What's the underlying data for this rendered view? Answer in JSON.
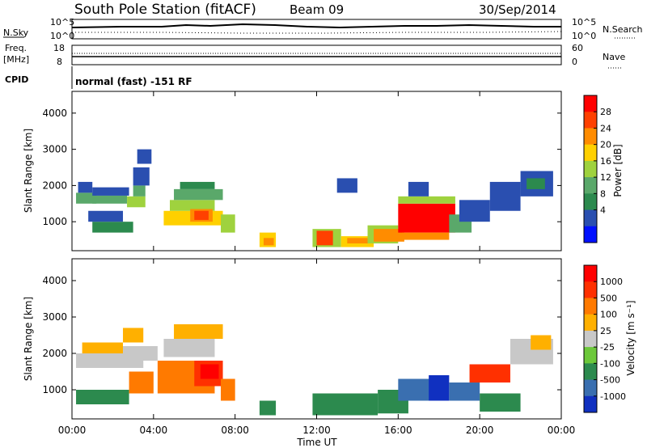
{
  "header": {
    "title": "South Pole Station (fitACF)",
    "beam": "Beam 09",
    "date": "30/Sep/2014"
  },
  "top_panels": {
    "nsky_label": "N.Sky",
    "nsearch_label": "N.Search",
    "nsky_ticks": [
      "10^5",
      "10^0"
    ],
    "nsearch_ticks": [
      "10^5",
      "10^0"
    ],
    "freq_label": "Freq.",
    "freq_unit": "[MHz]",
    "freq_ticks": [
      "18",
      "8"
    ],
    "nave_label": "Nave",
    "nave_ticks": [
      "60",
      "0"
    ],
    "cpid_label": "CPID",
    "cpid_text": "normal (fast) -151 RF"
  },
  "chart_data": [
    {
      "type": "heatmap",
      "name": "power",
      "ylabel": "Slant Range [km]",
      "yticks": [
        "1000",
        "2000",
        "3000",
        "4000"
      ],
      "ylim": [
        200,
        4600
      ],
      "xlim": [
        0,
        24
      ],
      "colorbar_label": "Power [dB]",
      "colorbar_ticks": [
        "28",
        "24",
        "20",
        "16",
        "12",
        "8",
        "4"
      ],
      "colorbar_colors": [
        "#0010ff",
        "#2a4fb0",
        "#2c8a4e",
        "#5aa86a",
        "#9fd23e",
        "#ffd000",
        "#ff8c00",
        "#ff4000",
        "#ff0000"
      ],
      "blocks": [
        {
          "t": [
            0.2,
            1.2
          ],
          "r": [
            1500,
            1800
          ],
          "c": 3
        },
        {
          "t": [
            0.3,
            1.0
          ],
          "r": [
            1800,
            2100
          ],
          "c": 1
        },
        {
          "t": [
            1.0,
            2.7
          ],
          "r": [
            1500,
            1720
          ],
          "c": 3
        },
        {
          "t": [
            1.0,
            2.8
          ],
          "r": [
            1720,
            1950
          ],
          "c": 1
        },
        {
          "t": [
            2.7,
            3.6
          ],
          "r": [
            1400,
            1700
          ],
          "c": 4
        },
        {
          "t": [
            3.0,
            3.6
          ],
          "r": [
            1700,
            2000
          ],
          "c": 3
        },
        {
          "t": [
            3.0,
            3.8
          ],
          "r": [
            2000,
            2500
          ],
          "c": 1
        },
        {
          "t": [
            3.2,
            3.9
          ],
          "r": [
            2600,
            3000
          ],
          "c": 1
        },
        {
          "t": [
            4.5,
            7.4
          ],
          "r": [
            900,
            1300
          ],
          "c": 5
        },
        {
          "t": [
            4.8,
            7.0
          ],
          "r": [
            1300,
            1600
          ],
          "c": 4
        },
        {
          "t": [
            5.0,
            7.4
          ],
          "r": [
            1600,
            1900
          ],
          "c": 3
        },
        {
          "t": [
            5.3,
            7.0
          ],
          "r": [
            1900,
            2100
          ],
          "c": 2
        },
        {
          "t": [
            5.8,
            6.9
          ],
          "r": [
            1000,
            1350
          ],
          "c": 6
        },
        {
          "t": [
            6.0,
            6.7
          ],
          "r": [
            1050,
            1300
          ],
          "c": 7
        },
        {
          "t": [
            7.3,
            8.0
          ],
          "r": [
            700,
            1200
          ],
          "c": 4
        },
        {
          "t": [
            1.0,
            3.0
          ],
          "r": [
            700,
            1000
          ],
          "c": 2
        },
        {
          "t": [
            0.8,
            2.5
          ],
          "r": [
            1000,
            1300
          ],
          "c": 1
        },
        {
          "t": [
            9.2,
            10.0
          ],
          "r": [
            300,
            700
          ],
          "c": 5
        },
        {
          "t": [
            9.4,
            9.9
          ],
          "r": [
            350,
            550
          ],
          "c": 6
        },
        {
          "t": [
            11.8,
            13.2
          ],
          "r": [
            300,
            800
          ],
          "c": 4
        },
        {
          "t": [
            12.0,
            12.8
          ],
          "r": [
            350,
            750
          ],
          "c": 7
        },
        {
          "t": [
            13.2,
            14.8
          ],
          "r": [
            300,
            600
          ],
          "c": 5
        },
        {
          "t": [
            13.5,
            14.5
          ],
          "r": [
            400,
            550
          ],
          "c": 6
        },
        {
          "t": [
            14.5,
            16.0
          ],
          "r": [
            400,
            900
          ],
          "c": 4
        },
        {
          "t": [
            14.8,
            16.3
          ],
          "r": [
            450,
            800
          ],
          "c": 6
        },
        {
          "t": [
            16.0,
            18.8
          ],
          "r": [
            700,
            1500
          ],
          "c": 8
        },
        {
          "t": [
            16.2,
            18.5
          ],
          "r": [
            500,
            700
          ],
          "c": 6
        },
        {
          "t": [
            16.0,
            18.8
          ],
          "r": [
            1500,
            1700
          ],
          "c": 4
        },
        {
          "t": [
            18.5,
            19.6
          ],
          "r": [
            700,
            1200
          ],
          "c": 3
        },
        {
          "t": [
            19.0,
            20.5
          ],
          "r": [
            1000,
            1600
          ],
          "c": 1
        },
        {
          "t": [
            20.5,
            22.0
          ],
          "r": [
            1300,
            2100
          ],
          "c": 1
        },
        {
          "t": [
            22.0,
            23.6
          ],
          "r": [
            1700,
            2400
          ],
          "c": 1
        },
        {
          "t": [
            22.3,
            23.2
          ],
          "r": [
            1900,
            2200
          ],
          "c": 2
        },
        {
          "t": [
            13.0,
            14.0
          ],
          "r": [
            1800,
            2200
          ],
          "c": 1
        },
        {
          "t": [
            16.5,
            17.5
          ],
          "r": [
            1700,
            2100
          ],
          "c": 1
        }
      ]
    },
    {
      "type": "heatmap",
      "name": "velocity",
      "ylabel": "Slant Range [km]",
      "yticks": [
        "1000",
        "2000",
        "3000",
        "4000"
      ],
      "ylim": [
        200,
        4600
      ],
      "xlim": [
        0,
        24
      ],
      "xticks": [
        "00:00",
        "04:00",
        "08:00",
        "12:00",
        "16:00",
        "20:00",
        "00:00"
      ],
      "xlabel": "Time UT",
      "colorbar_label": "Velocity [m s⁻¹]",
      "colorbar_ticks": [
        "1000",
        "500",
        "100",
        "25",
        "-25",
        "-100",
        "-500",
        "-1000"
      ],
      "colorbar_colors": [
        "#1030c0",
        "#3a6fb0",
        "#2c8a4e",
        "#6cc83a",
        "#c8c8c8",
        "#ffb000",
        "#ff7a00",
        "#ff3000",
        "#ff0000"
      ],
      "blocks": [
        {
          "t": [
            0.2,
            3.5
          ],
          "r": [
            1600,
            2000
          ],
          "c": 4
        },
        {
          "t": [
            0.2,
            2.8
          ],
          "r": [
            600,
            1000
          ],
          "c": 2
        },
        {
          "t": [
            0.5,
            2.5
          ],
          "r": [
            2000,
            2300
          ],
          "c": 5
        },
        {
          "t": [
            2.5,
            4.2
          ],
          "r": [
            1800,
            2200
          ],
          "c": 4
        },
        {
          "t": [
            2.8,
            4.0
          ],
          "r": [
            900,
            1500
          ],
          "c": 6
        },
        {
          "t": [
            2.5,
            3.5
          ],
          "r": [
            2300,
            2700
          ],
          "c": 5
        },
        {
          "t": [
            4.2,
            7.0
          ],
          "r": [
            900,
            1800
          ],
          "c": 6
        },
        {
          "t": [
            6.0,
            7.4
          ],
          "r": [
            1100,
            1800
          ],
          "c": 7
        },
        {
          "t": [
            6.3,
            7.2
          ],
          "r": [
            1300,
            1700
          ],
          "c": 8
        },
        {
          "t": [
            4.5,
            7.0
          ],
          "r": [
            1900,
            2400
          ],
          "c": 4
        },
        {
          "t": [
            5.0,
            7.4
          ],
          "r": [
            2400,
            2800
          ],
          "c": 5
        },
        {
          "t": [
            7.3,
            8.0
          ],
          "r": [
            700,
            1300
          ],
          "c": 6
        },
        {
          "t": [
            9.2,
            10.0
          ],
          "r": [
            300,
            700
          ],
          "c": 2
        },
        {
          "t": [
            11.8,
            15.0
          ],
          "r": [
            300,
            900
          ],
          "c": 2
        },
        {
          "t": [
            15.0,
            16.5
          ],
          "r": [
            350,
            1000
          ],
          "c": 2
        },
        {
          "t": [
            16.0,
            17.8
          ],
          "r": [
            700,
            1300
          ],
          "c": 1
        },
        {
          "t": [
            17.5,
            18.5
          ],
          "r": [
            700,
            1400
          ],
          "c": 0
        },
        {
          "t": [
            18.5,
            20.0
          ],
          "r": [
            700,
            1200
          ],
          "c": 1
        },
        {
          "t": [
            19.5,
            21.5
          ],
          "r": [
            1200,
            1700
          ],
          "c": 7
        },
        {
          "t": [
            21.5,
            23.6
          ],
          "r": [
            1700,
            2400
          ],
          "c": 4
        },
        {
          "t": [
            22.5,
            23.5
          ],
          "r": [
            2100,
            2500
          ],
          "c": 5
        },
        {
          "t": [
            20.0,
            22.0
          ],
          "r": [
            400,
            900
          ],
          "c": 2
        }
      ]
    }
  ]
}
